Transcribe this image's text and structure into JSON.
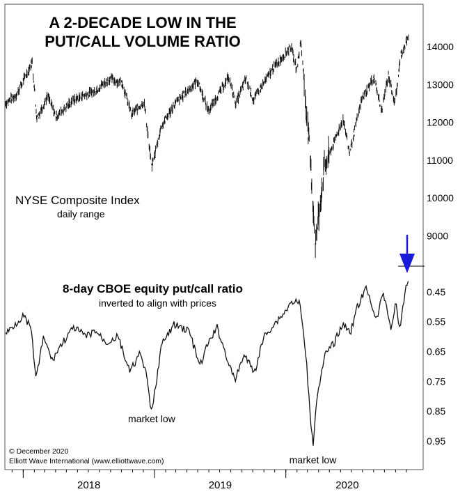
{
  "chart_data": {
    "type": "line",
    "title": "A 2-DECADE LOW IN THE PUT/CALL VOLUME RATIO",
    "title_lines": [
      "A 2-DECADE LOW IN THE",
      "PUT/CALL VOLUME RATIO"
    ],
    "x_axis": {
      "type": "date",
      "range": [
        "2017-11-13",
        "2020-12-07"
      ],
      "year_ticks": [
        "2018-01-01",
        "2019-01-01",
        "2020-01-01"
      ],
      "labels": [
        "2018",
        "2019",
        "2020"
      ]
    },
    "panels": [
      {
        "name": "NYSE Composite Index",
        "label": "NYSE Composite Index",
        "sublabel": "daily range",
        "kind": "range-bars",
        "y_range": [
          8600,
          14500
        ],
        "y_ticks": [
          9000,
          10000,
          11000,
          12000,
          13000,
          14000
        ],
        "y_tick_labels": [
          "9000",
          "10000",
          "11000",
          "12000",
          "13000",
          "14000"
        ],
        "points": [
          [
            "2017-11-13",
            12500
          ],
          [
            "2017-12-15",
            12750
          ],
          [
            "2018-01-26",
            13600
          ],
          [
            "2018-02-08",
            12100
          ],
          [
            "2018-03-10",
            12700
          ],
          [
            "2018-04-02",
            12150
          ],
          [
            "2018-05-15",
            12550
          ],
          [
            "2018-06-15",
            12700
          ],
          [
            "2018-07-15",
            12800
          ],
          [
            "2018-08-29",
            13150
          ],
          [
            "2018-10-03",
            13050
          ],
          [
            "2018-10-29",
            12200
          ],
          [
            "2018-12-03",
            12550
          ],
          [
            "2018-12-24",
            10800
          ],
          [
            "2019-01-20",
            11900
          ],
          [
            "2019-02-28",
            12500
          ],
          [
            "2019-04-30",
            13100
          ],
          [
            "2019-05-31",
            12300
          ],
          [
            "2019-07-26",
            13200
          ],
          [
            "2019-08-15",
            12500
          ],
          [
            "2019-09-12",
            13150
          ],
          [
            "2019-10-03",
            12600
          ],
          [
            "2019-11-28",
            13450
          ],
          [
            "2020-01-15",
            14000
          ],
          [
            "2020-01-31",
            13400
          ],
          [
            "2020-02-12",
            14150
          ],
          [
            "2020-02-28",
            12200
          ],
          [
            "2020-03-09",
            11000
          ],
          [
            "2020-03-23",
            8800
          ],
          [
            "2020-04-17",
            10800
          ],
          [
            "2020-06-08",
            12100
          ],
          [
            "2020-06-26",
            11200
          ],
          [
            "2020-07-30",
            12600
          ],
          [
            "2020-09-02",
            13200
          ],
          [
            "2020-09-23",
            12300
          ],
          [
            "2020-10-12",
            13250
          ],
          [
            "2020-10-30",
            12500
          ],
          [
            "2020-11-16",
            13800
          ],
          [
            "2020-12-04",
            14200
          ]
        ]
      },
      {
        "name": "8-day CBOE equity put/call ratio",
        "label": "8-day CBOE equity put/call ratio",
        "sublabel": "inverted to align with prices",
        "kind": "line",
        "y_range": [
          0.99,
          0.38
        ],
        "inverted": true,
        "y_ticks": [
          0.45,
          0.55,
          0.65,
          0.75,
          0.85,
          0.95
        ],
        "y_tick_labels": [
          "0.45",
          "0.55",
          "0.65",
          "0.75",
          "0.85",
          "0.95"
        ],
        "points": [
          [
            "2017-11-13",
            0.59
          ],
          [
            "2017-12-08",
            0.56
          ],
          [
            "2017-12-31",
            0.53
          ],
          [
            "2018-01-22",
            0.57
          ],
          [
            "2018-02-06",
            0.74
          ],
          [
            "2018-02-27",
            0.6
          ],
          [
            "2018-03-22",
            0.68
          ],
          [
            "2018-04-20",
            0.62
          ],
          [
            "2018-05-22",
            0.57
          ],
          [
            "2018-06-25",
            0.6
          ],
          [
            "2018-07-20",
            0.58
          ],
          [
            "2018-08-20",
            0.62
          ],
          [
            "2018-09-22",
            0.6
          ],
          [
            "2018-10-24",
            0.72
          ],
          [
            "2018-11-20",
            0.66
          ],
          [
            "2018-12-05",
            0.7
          ],
          [
            "2018-12-24",
            0.86
          ],
          [
            "2019-01-20",
            0.63
          ],
          [
            "2019-02-24",
            0.56
          ],
          [
            "2019-04-07",
            0.58
          ],
          [
            "2019-05-07",
            0.7
          ],
          [
            "2019-05-31",
            0.62
          ],
          [
            "2019-06-24",
            0.57
          ],
          [
            "2019-08-12",
            0.75
          ],
          [
            "2019-09-06",
            0.66
          ],
          [
            "2019-10-06",
            0.72
          ],
          [
            "2019-11-01",
            0.6
          ],
          [
            "2019-11-28",
            0.56
          ],
          [
            "2019-12-27",
            0.52
          ],
          [
            "2020-01-20",
            0.48
          ],
          [
            "2020-02-10",
            0.49
          ],
          [
            "2020-02-28",
            0.7
          ],
          [
            "2020-03-16",
            0.97
          ],
          [
            "2020-03-27",
            0.8
          ],
          [
            "2020-04-20",
            0.66
          ],
          [
            "2020-05-15",
            0.62
          ],
          [
            "2020-06-05",
            0.56
          ],
          [
            "2020-06-30",
            0.58
          ],
          [
            "2020-07-18",
            0.5
          ],
          [
            "2020-08-11",
            0.44
          ],
          [
            "2020-08-25",
            0.48
          ],
          [
            "2020-09-08",
            0.55
          ],
          [
            "2020-09-28",
            0.45
          ],
          [
            "2020-10-19",
            0.57
          ],
          [
            "2020-11-02",
            0.49
          ],
          [
            "2020-11-14",
            0.58
          ],
          [
            "2020-11-26",
            0.46
          ],
          [
            "2020-12-07",
            0.4
          ]
        ]
      }
    ],
    "annotations": [
      {
        "text": "market low",
        "date": "2018-12-24"
      },
      {
        "text": "market low",
        "date": "2020-03-16"
      }
    ],
    "arrow": {
      "color": "#1a1adb",
      "date": "2020-12-07",
      "points_to": "put/call ratio latest reading"
    }
  },
  "footer": {
    "copyright": "© December 2020",
    "source": "Elliott Wave International (www.elliottwave.com)"
  }
}
